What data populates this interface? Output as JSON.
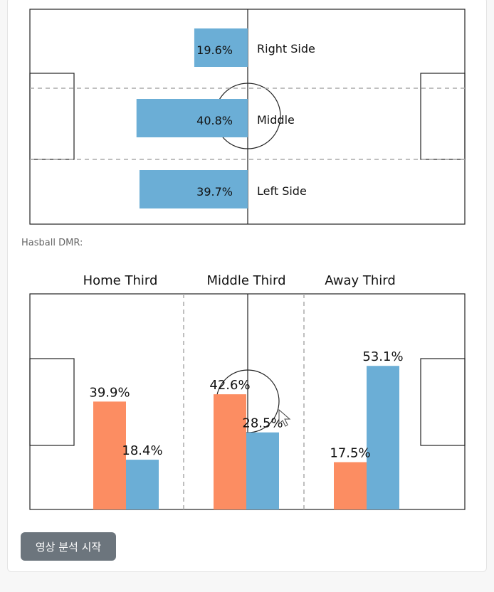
{
  "caption": "Hasball DMR:",
  "button_label": "영상 분석 시작",
  "colors": {
    "home": "#fc8d62",
    "away": "#6baed6",
    "line": "#222222",
    "dash": "#aaaaaa"
  },
  "chart_data": [
    {
      "type": "bar",
      "orientation": "horizontal",
      "categories": [
        "Right Side",
        "Middle",
        "Left Side"
      ],
      "values": [
        19.6,
        40.8,
        39.7
      ],
      "value_labels": [
        "19.6%",
        "40.8%",
        "39.7%"
      ],
      "unit": "%"
    },
    {
      "type": "bar",
      "categories": [
        "Home Third",
        "Middle Third",
        "Away Third"
      ],
      "series": [
        {
          "values": [
            39.9,
            42.6,
            17.5
          ],
          "value_labels": [
            "39.9%",
            "42.6%",
            "17.5%"
          ],
          "color": "#fc8d62"
        },
        {
          "values": [
            18.4,
            28.5,
            53.1
          ],
          "value_labels": [
            "18.4%",
            "28.5%",
            "53.1%"
          ],
          "color": "#6baed6"
        }
      ],
      "unit": "%"
    }
  ]
}
